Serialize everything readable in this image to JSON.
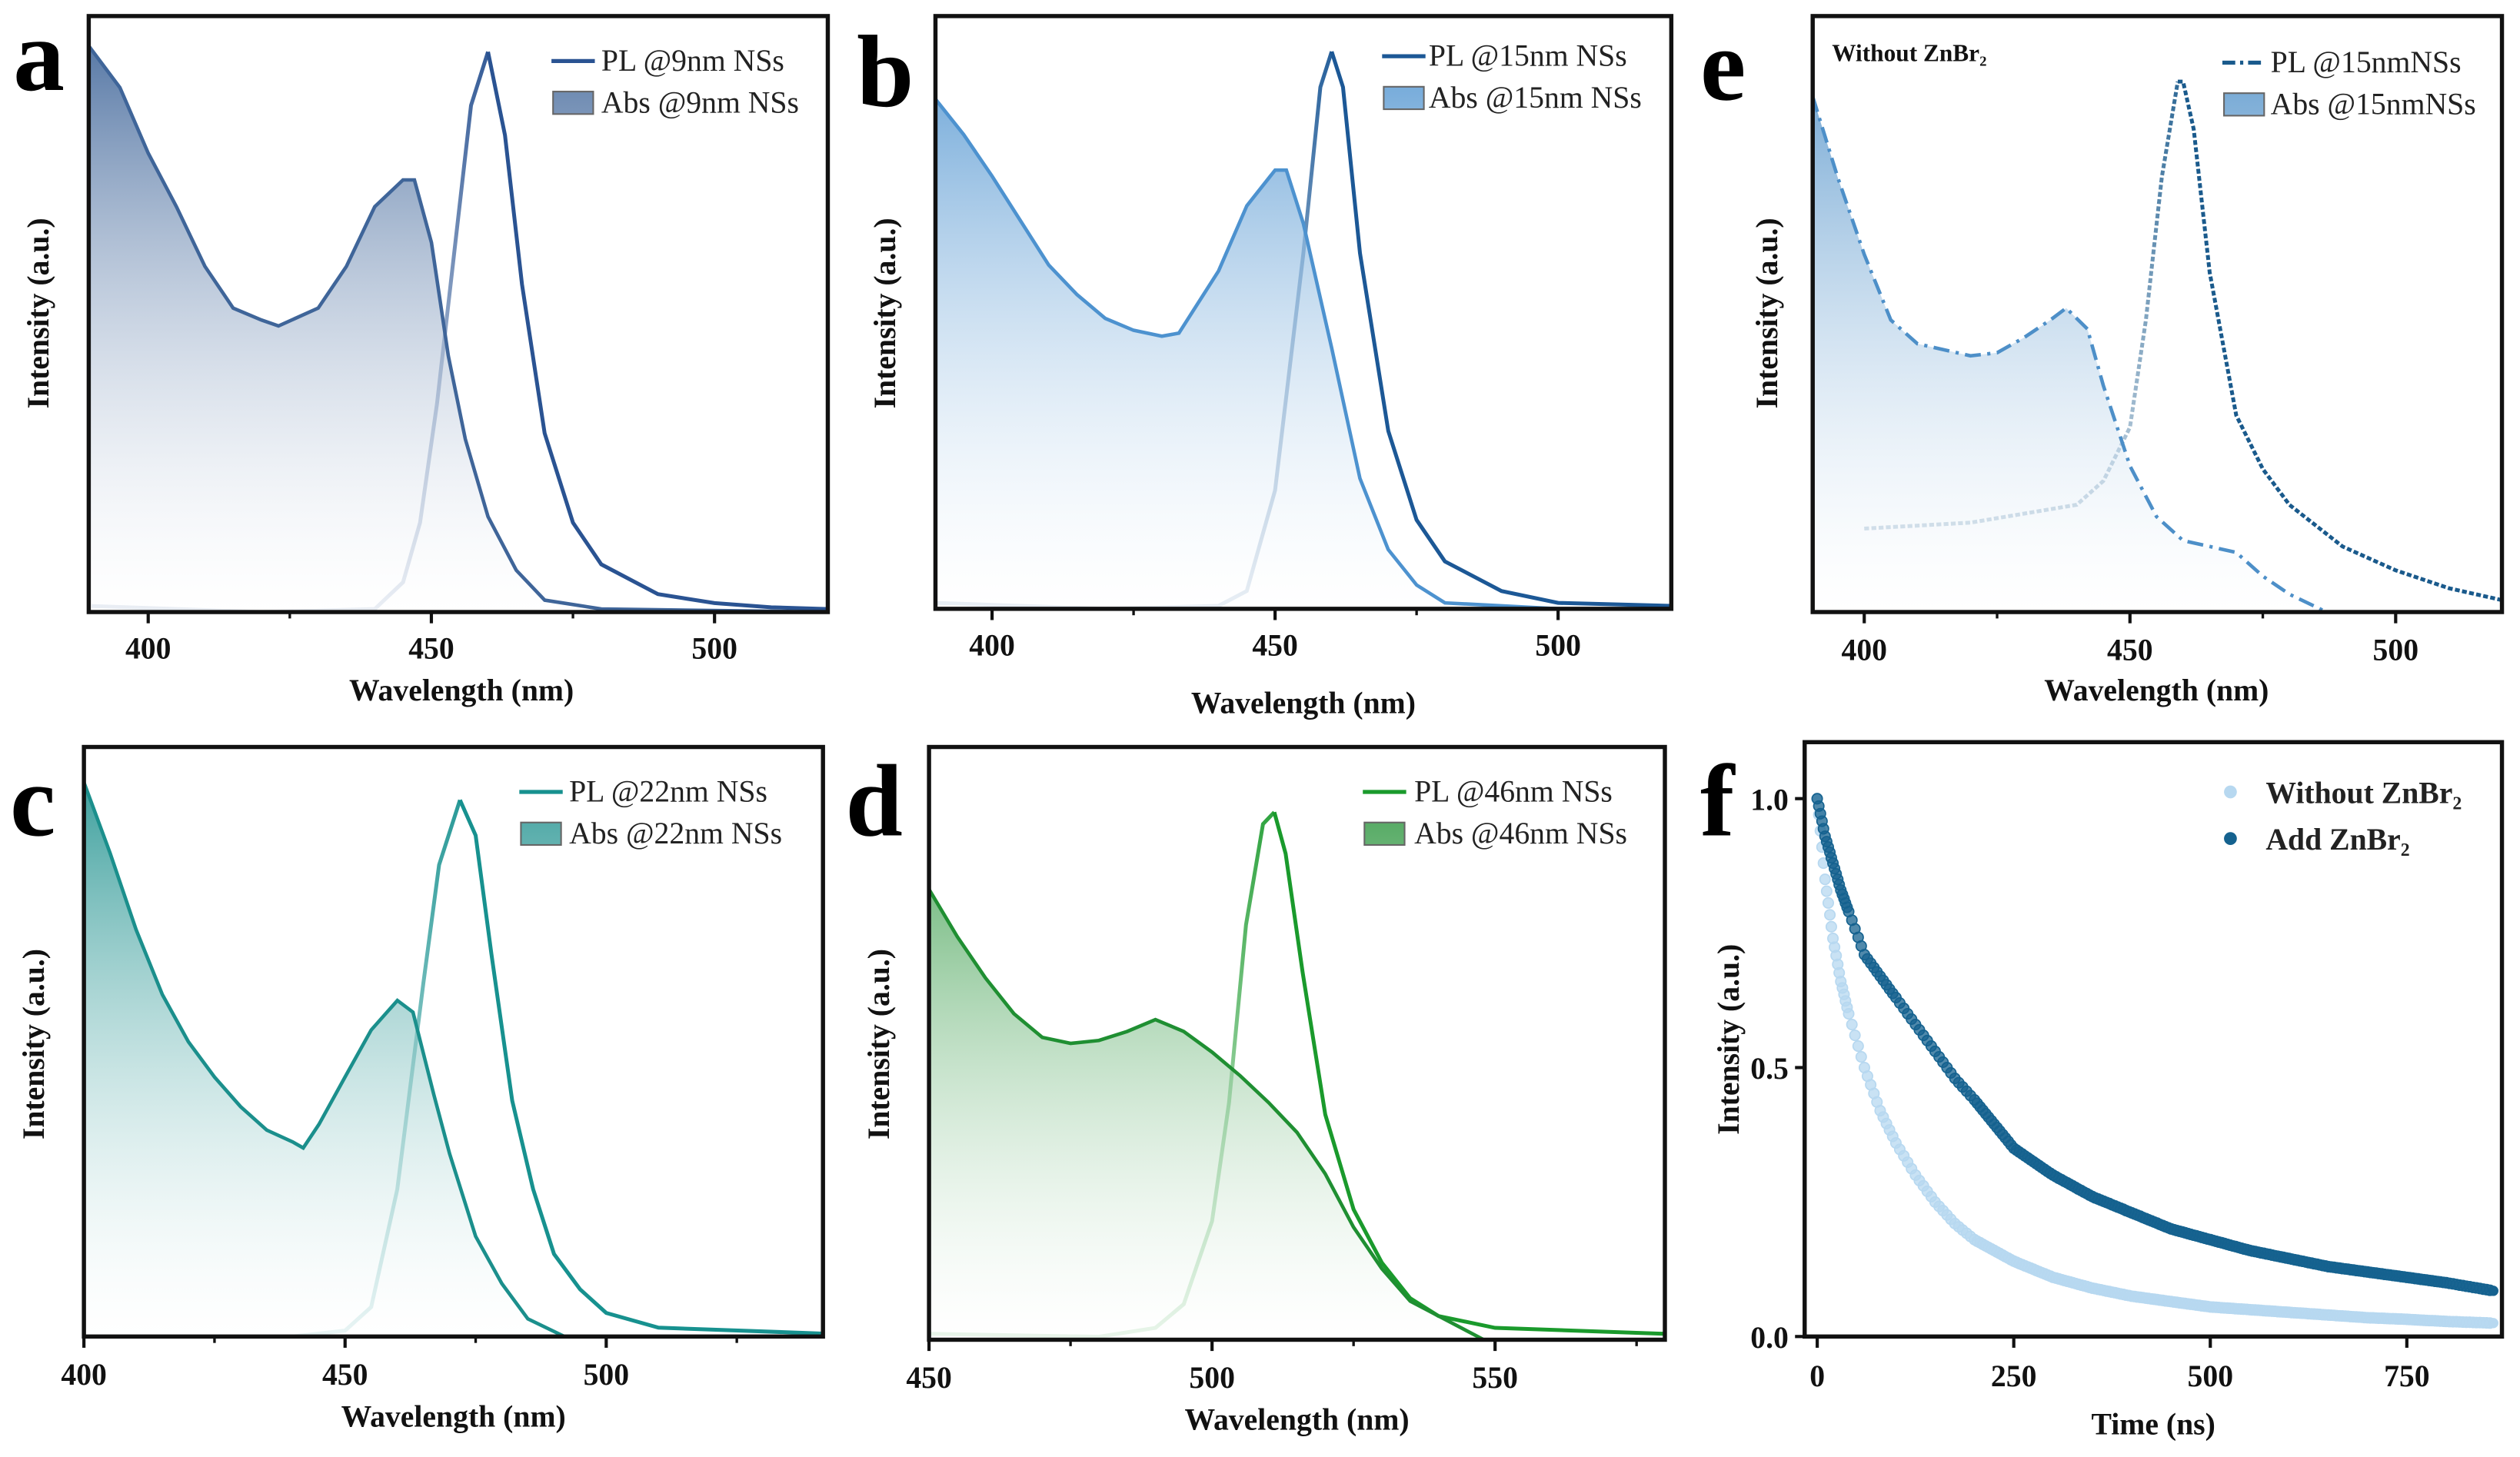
{
  "chart_data": [
    {
      "panel": "a",
      "type": "line",
      "title": "",
      "xlabel": "Wavelength (nm)",
      "ylabel": "Intensity (a.u.)",
      "xlim": [
        389.5,
        520
      ],
      "ylim": [
        0,
        1
      ],
      "xticks": [
        400,
        450,
        500
      ],
      "xminor": [
        425,
        475
      ],
      "color": "#2a5392",
      "abs_color": "#3f6599",
      "series": [
        {
          "name": "PL @9nm NSs",
          "kind": "pl",
          "x": [
            390,
            420,
            440,
            445,
            448,
            451,
            454,
            457,
            460,
            463,
            466,
            470,
            475,
            480,
            490,
            500,
            510,
            520
          ],
          "y": [
            0.01,
            0.0,
            0.005,
            0.05,
            0.15,
            0.35,
            0.6,
            0.85,
            0.94,
            0.8,
            0.55,
            0.3,
            0.15,
            0.08,
            0.03,
            0.015,
            0.008,
            0.005
          ]
        },
        {
          "name": "Abs @9nm NSs",
          "kind": "abs",
          "x": [
            389.5,
            395,
            400,
            405,
            410,
            415,
            420,
            423,
            430,
            435,
            440,
            445,
            447,
            450,
            453,
            456,
            460,
            465,
            470,
            480,
            520
          ],
          "y": [
            0.95,
            0.88,
            0.77,
            0.68,
            0.58,
            0.51,
            0.49,
            0.48,
            0.51,
            0.58,
            0.68,
            0.725,
            0.725,
            0.62,
            0.43,
            0.29,
            0.16,
            0.07,
            0.02,
            0.005,
            0.0
          ]
        }
      ]
    },
    {
      "panel": "b",
      "type": "line",
      "title": "",
      "xlabel": "Wavelength (nm)",
      "ylabel": "Intensity (a.u.)",
      "xlim": [
        390,
        520
      ],
      "ylim": [
        0,
        1
      ],
      "xticks": [
        400,
        450,
        500
      ],
      "xminor": [
        425,
        475
      ],
      "color": "#1c5896",
      "abs_color": "#4d92cf",
      "series": [
        {
          "name": "PL @15nm NSs",
          "kind": "pl",
          "x": [
            390,
            420,
            440,
            445,
            450,
            455,
            458,
            460,
            462,
            465,
            470,
            475,
            480,
            490,
            500,
            520
          ],
          "y": [
            0.01,
            0.0,
            0.005,
            0.03,
            0.2,
            0.6,
            0.88,
            0.94,
            0.88,
            0.6,
            0.3,
            0.15,
            0.08,
            0.03,
            0.01,
            0.005
          ]
        },
        {
          "name": "Abs @15nm NSs",
          "kind": "abs",
          "x": [
            390,
            395,
            400,
            410,
            415,
            420,
            425,
            430,
            433,
            440,
            445,
            450,
            452,
            455,
            460,
            465,
            470,
            475,
            480,
            500,
            520
          ],
          "y": [
            0.86,
            0.8,
            0.73,
            0.58,
            0.53,
            0.49,
            0.47,
            0.46,
            0.465,
            0.57,
            0.68,
            0.74,
            0.74,
            0.65,
            0.44,
            0.22,
            0.1,
            0.04,
            0.01,
            0.0,
            0.0
          ]
        }
      ]
    },
    {
      "panel": "e",
      "type": "line",
      "title": "",
      "note": "Without ZnBr₂",
      "xlabel": "Wavelength (nm)",
      "ylabel": "Intensity (a.u.)",
      "xlim": [
        390.3,
        520
      ],
      "ylim": [
        0,
        1
      ],
      "xticks": [
        400,
        450,
        500
      ],
      "xminor": [
        425,
        475
      ],
      "color": "#1a5a8c",
      "abs_color": "#4d8fc8",
      "series": [
        {
          "name": "PL @15nmNSs",
          "kind": "pl-dashed",
          "x": [
            400,
            420,
            440,
            445,
            450,
            453,
            456,
            459,
            460,
            462,
            465,
            470,
            475,
            480,
            490,
            500,
            510,
            520
          ],
          "y": [
            0.14,
            0.15,
            0.18,
            0.22,
            0.31,
            0.49,
            0.73,
            0.89,
            0.89,
            0.81,
            0.57,
            0.33,
            0.24,
            0.18,
            0.11,
            0.07,
            0.04,
            0.02
          ]
        },
        {
          "name": "Abs @15nmNSs",
          "kind": "abs-dashdot",
          "x": [
            390.3,
            395,
            400,
            405,
            410,
            420,
            425,
            430,
            435,
            438,
            442,
            445,
            450,
            455,
            460,
            465,
            470,
            475,
            480,
            487
          ],
          "y": [
            0.865,
            0.73,
            0.6,
            0.49,
            0.45,
            0.43,
            0.435,
            0.46,
            0.49,
            0.51,
            0.475,
            0.38,
            0.245,
            0.16,
            0.12,
            0.11,
            0.1,
            0.06,
            0.03,
            0.0
          ]
        }
      ]
    },
    {
      "panel": "c",
      "type": "line",
      "title": "",
      "xlabel": "Wavelength (nm)",
      "ylabel": "Intensity (a.u.)",
      "xlim": [
        400,
        541.5
      ],
      "ylim": [
        0,
        1
      ],
      "xticks": [
        400,
        450,
        500
      ],
      "xminor": [
        425,
        475,
        525
      ],
      "color": "#17918f",
      "abs_color": "#1b8f8c",
      "series": [
        {
          "name": "PL @22nm NSs",
          "kind": "pl",
          "x": [
            400,
            440,
            450,
            455,
            460,
            465,
            468,
            472,
            475,
            478,
            482,
            486,
            490,
            495,
            500,
            510,
            541.5
          ],
          "y": [
            0.0,
            0.0,
            0.01,
            0.05,
            0.25,
            0.6,
            0.8,
            0.91,
            0.85,
            0.65,
            0.4,
            0.25,
            0.14,
            0.08,
            0.04,
            0.015,
            0.005
          ]
        },
        {
          "name": "Abs @22nm NSs",
          "kind": "abs",
          "x": [
            400,
            405,
            410,
            415,
            420,
            425,
            430,
            435,
            440,
            442,
            445,
            450,
            455,
            460,
            463,
            467,
            470,
            475,
            480,
            485,
            492
          ],
          "y": [
            0.94,
            0.82,
            0.69,
            0.58,
            0.5,
            0.44,
            0.39,
            0.35,
            0.33,
            0.32,
            0.36,
            0.44,
            0.52,
            0.57,
            0.55,
            0.41,
            0.31,
            0.17,
            0.09,
            0.03,
            0.0
          ]
        }
      ]
    },
    {
      "panel": "d",
      "type": "line",
      "title": "",
      "xlabel": "Wavelength (nm)",
      "ylabel": "Intensity (a.u.)",
      "xlim": [
        450,
        580
      ],
      "ylim": [
        0,
        1
      ],
      "xticks": [
        450,
        500,
        550
      ],
      "xminor": [
        475,
        525,
        575
      ],
      "color": "#1a9a2c",
      "abs_color": "#1f8f32",
      "series": [
        {
          "name": "PL @46nm NSs",
          "kind": "pl",
          "x": [
            450,
            480,
            490,
            495,
            500,
            503,
            506,
            509,
            511,
            513,
            516,
            520,
            525,
            530,
            535,
            540,
            550,
            580
          ],
          "y": [
            0.01,
            0.005,
            0.02,
            0.06,
            0.2,
            0.4,
            0.7,
            0.87,
            0.89,
            0.82,
            0.62,
            0.38,
            0.22,
            0.13,
            0.07,
            0.04,
            0.02,
            0.01
          ]
        },
        {
          "name": "Abs @46nm NSs",
          "kind": "abs",
          "x": [
            450,
            455,
            460,
            465,
            470,
            475,
            480,
            485,
            490,
            495,
            500,
            505,
            510,
            515,
            520,
            525,
            530,
            535,
            540,
            548
          ],
          "y": [
            0.76,
            0.68,
            0.61,
            0.55,
            0.51,
            0.5,
            0.505,
            0.52,
            0.54,
            0.52,
            0.485,
            0.445,
            0.4,
            0.35,
            0.28,
            0.19,
            0.12,
            0.065,
            0.04,
            0.0
          ]
        }
      ]
    },
    {
      "panel": "f",
      "type": "scatter",
      "title": "",
      "xlabel": "Time (ns)",
      "ylabel": "Intensity (a.u.)",
      "xlim": [
        -16,
        871
      ],
      "ylim": [
        0,
        1.105
      ],
      "xticks": [
        0,
        250,
        500,
        750
      ],
      "yticks": [
        0.0,
        0.5,
        1.0
      ],
      "xtick_labels": [
        "0",
        "250",
        "500",
        "750"
      ],
      "ytick_labels": [
        "0.0",
        "0.5",
        "1.0"
      ],
      "series": [
        {
          "name": "Without ZnBr₂",
          "color": "#b7d8f0",
          "x": [
            0,
            10,
            20,
            30,
            40,
            60,
            80,
            100,
            125,
            150,
            175,
            200,
            250,
            300,
            350,
            400,
            450,
            500,
            550,
            600,
            650,
            700,
            750,
            800,
            860
          ],
          "y": [
            1.0,
            0.85,
            0.74,
            0.66,
            0.6,
            0.5,
            0.42,
            0.36,
            0.3,
            0.25,
            0.21,
            0.18,
            0.14,
            0.11,
            0.09,
            0.075,
            0.065,
            0.055,
            0.05,
            0.045,
            0.04,
            0.035,
            0.032,
            0.028,
            0.025
          ]
        },
        {
          "name": "Add ZnBr₂",
          "color": "#15628f",
          "x": [
            0,
            10,
            20,
            30,
            40,
            60,
            80,
            100,
            125,
            150,
            175,
            200,
            250,
            300,
            350,
            400,
            450,
            500,
            550,
            600,
            650,
            700,
            750,
            800,
            860
          ],
          "y": [
            1.0,
            0.93,
            0.88,
            0.83,
            0.79,
            0.71,
            0.67,
            0.63,
            0.58,
            0.53,
            0.48,
            0.44,
            0.35,
            0.3,
            0.26,
            0.23,
            0.2,
            0.18,
            0.16,
            0.145,
            0.13,
            0.12,
            0.11,
            0.1,
            0.085
          ]
        }
      ]
    }
  ]
}
